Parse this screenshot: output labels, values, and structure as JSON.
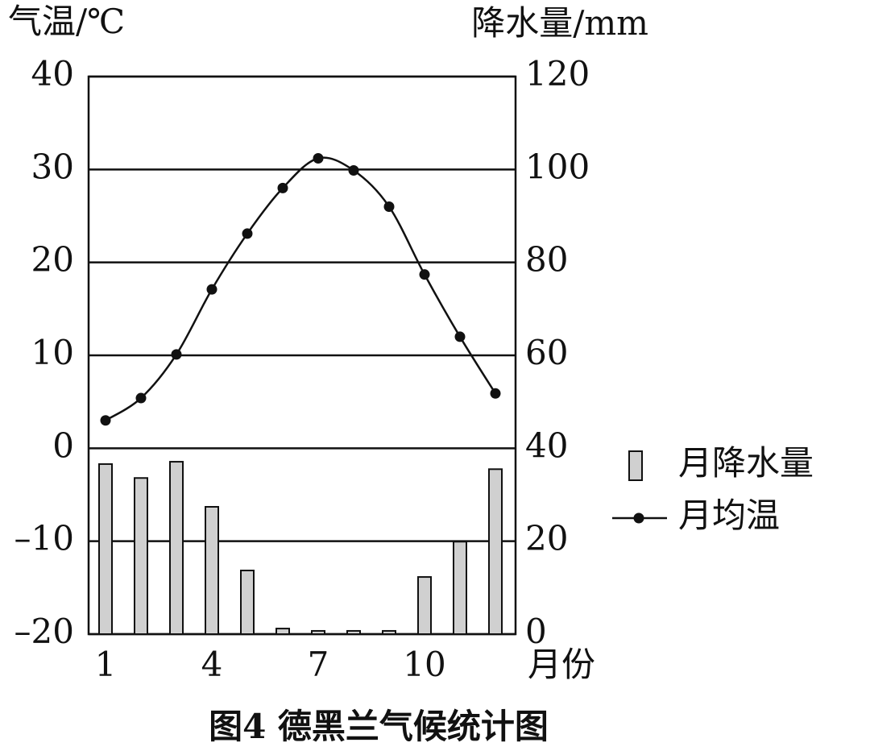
{
  "chart_data": {
    "type": "bar-line",
    "title": "图4 德黑兰气候统计图",
    "y_label": "气温/℃",
    "y2_label": "降水量/mm",
    "x_label": "月份",
    "categories": [
      "1",
      null,
      null,
      "4",
      null,
      null,
      "7",
      null,
      null,
      "10",
      null,
      null
    ],
    "series": [
      {
        "name": "月降水量",
        "type": "bar",
        "axis": "y2",
        "color": "#d0d0d0",
        "values": [
          36.6,
          33.6,
          37.1,
          27.4,
          13.7,
          1.2,
          0.7,
          0.7,
          0.7,
          12.3,
          19.9,
          35.5
        ]
      },
      {
        "name": "月均温",
        "type": "line",
        "axis": "y",
        "color": "#111111",
        "values": [
          3,
          5.4,
          10.1,
          17.1,
          23.1,
          28,
          31.2,
          29.9,
          26,
          18.7,
          12,
          5.9
        ]
      }
    ],
    "ylim": [
      -20,
      40
    ],
    "yticks": [
      {
        "value": -20,
        "label": "–20"
      },
      {
        "value": -10,
        "label": "–10"
      },
      0,
      10,
      20,
      30,
      40
    ],
    "y2lim": [
      0,
      120
    ],
    "y2ticks": [
      0,
      20,
      40,
      60,
      80,
      100,
      120
    ],
    "grid": true,
    "legend": "right"
  }
}
